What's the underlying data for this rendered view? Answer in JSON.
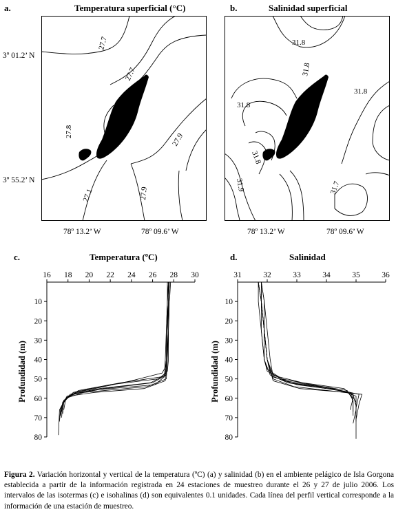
{
  "figure": {
    "panels": [
      {
        "letter": "a.",
        "title": "Temperatura superficial (°C)"
      },
      {
        "letter": "b.",
        "title": "Salinidad superficial"
      },
      {
        "letter": "c.",
        "title": "Temperatura (ºC)"
      },
      {
        "letter": "d.",
        "title": "Salinidad"
      }
    ],
    "maps": {
      "lat_labels": [
        "3º 01.2’ N",
        "3º 55.2’ N"
      ],
      "lon_labels": [
        "78º 13.2’ W",
        "78º 09.6’ W"
      ],
      "temp_isotherm_labels": [
        "27.7",
        "27.7",
        "27.8",
        "27.9",
        "27.9",
        "27.1"
      ],
      "sal_isohaline_labels": [
        "31.8",
        "31.8",
        "31.8",
        "31.8",
        "31.8",
        "31.9",
        "31.7"
      ]
    },
    "profiles": {
      "ylabel": "Profundidad (m)"
    },
    "caption": {
      "label": "Figura 2.",
      "text": " Variación horizontal y vertical de la temperatura (ºC) (a) y salinidad (b) en el ambiente pelágico de Isla Gorgona establecida a partir de la información registrada en 24 estaciones de muestreo durante el 26 y 27 de julio 2006. Los intervalos de las isotermas (c) e isohalinas (d) son equivalentes 0.1 unidades. Cada línea del perfil vertical corresponde a la información de una estación de muestreo."
    }
  },
  "chart_data": [
    {
      "type": "line",
      "title": "Temperatura (ºC)",
      "ylabel": "Profundidad (m)",
      "xlim": [
        16,
        30
      ],
      "ylim": [
        0,
        80
      ],
      "x_ticks": [
        16,
        18,
        20,
        22,
        24,
        26,
        28,
        30
      ],
      "y_ticks": [
        10,
        20,
        30,
        40,
        50,
        60,
        70,
        80
      ],
      "y_inverted": true,
      "x_axis_position": "top",
      "series": [
        {
          "x": [
            27.6,
            27.5,
            27.4,
            27.4,
            27.3,
            26.5,
            22,
            18.5,
            17.6,
            17.5
          ],
          "y": [
            0,
            10,
            25,
            40,
            47,
            50,
            53,
            57,
            62,
            68
          ]
        },
        {
          "x": [
            27.5,
            27.4,
            27.4,
            27.3,
            27.2,
            25.8,
            21,
            18.2,
            17.5,
            17.4
          ],
          "y": [
            0,
            10,
            25,
            40,
            48,
            52,
            55,
            58,
            63,
            70
          ]
        },
        {
          "x": [
            27.7,
            27.6,
            27.5,
            27.5,
            27.4,
            26.8,
            23,
            19,
            17.8,
            17.6
          ],
          "y": [
            0,
            10,
            25,
            40,
            46,
            49,
            52,
            56,
            60,
            66
          ]
        },
        {
          "x": [
            27.4,
            27.4,
            27.3,
            27.2,
            27.1,
            26.2,
            20,
            17.9,
            17.3,
            17.2
          ],
          "y": [
            0,
            10,
            25,
            40,
            49,
            53,
            56,
            59,
            65,
            72
          ]
        },
        {
          "x": [
            27.6,
            27.5,
            27.5,
            27.4,
            27.3,
            25.5,
            19.5,
            17.8,
            17.2,
            17.1
          ],
          "y": [
            0,
            10,
            25,
            40,
            50,
            54,
            57,
            60,
            66,
            79
          ]
        },
        {
          "x": [
            27.5,
            27.5,
            27.4,
            27.3,
            27.2,
            26.9,
            24,
            18.8,
            17.6,
            17.4
          ],
          "y": [
            0,
            10,
            25,
            40,
            44,
            47,
            51,
            57,
            61,
            67
          ]
        },
        {
          "x": [
            27.6,
            27.5,
            27.4,
            27.3,
            27.3,
            26.0,
            21.5,
            18.4,
            17.5,
            17.3
          ],
          "y": [
            0,
            10,
            25,
            40,
            48,
            52,
            55,
            58,
            62,
            69
          ]
        },
        {
          "x": [
            27.5,
            27.4,
            27.3,
            27.3,
            27.2,
            25.2,
            20.5,
            18.0,
            17.4,
            17.2
          ],
          "y": [
            0,
            10,
            25,
            40,
            51,
            55,
            57,
            59,
            64,
            71
          ]
        }
      ]
    },
    {
      "type": "line",
      "title": "Salinidad",
      "ylabel": "Profundidad (m)",
      "xlim": [
        31,
        36
      ],
      "ylim": [
        0,
        80
      ],
      "x_ticks": [
        31,
        32,
        33,
        34,
        35,
        36
      ],
      "y_ticks": [
        10,
        20,
        30,
        40,
        50,
        60,
        70,
        80
      ],
      "y_inverted": true,
      "x_axis_position": "top",
      "series": [
        {
          "x": [
            31.7,
            31.8,
            31.9,
            32.0,
            32.1,
            32.6,
            33.8,
            34.8,
            35.0,
            35.0
          ],
          "y": [
            0,
            10,
            25,
            40,
            47,
            51,
            54,
            57,
            62,
            70
          ]
        },
        {
          "x": [
            31.8,
            31.8,
            31.9,
            32.0,
            32.2,
            32.8,
            34.2,
            34.9,
            35.0,
            35.0
          ],
          "y": [
            0,
            10,
            25,
            40,
            48,
            52,
            55,
            58,
            64,
            72
          ]
        },
        {
          "x": [
            31.7,
            31.7,
            31.8,
            31.9,
            32.0,
            32.5,
            33.5,
            34.7,
            34.9,
            34.9
          ],
          "y": [
            0,
            10,
            25,
            40,
            46,
            50,
            53,
            56,
            61,
            67
          ]
        },
        {
          "x": [
            31.8,
            31.9,
            32.0,
            32.1,
            32.2,
            33.0,
            34.5,
            35.1,
            35.0,
            35.0
          ],
          "y": [
            0,
            10,
            25,
            40,
            49,
            53,
            56,
            58,
            65,
            81
          ]
        },
        {
          "x": [
            31.7,
            31.8,
            31.9,
            31.9,
            32.0,
            32.4,
            33.2,
            34.6,
            34.9,
            34.8
          ],
          "y": [
            0,
            10,
            25,
            40,
            45,
            49,
            52,
            55,
            60,
            66
          ]
        },
        {
          "x": [
            31.8,
            31.8,
            31.9,
            32.0,
            32.2,
            32.9,
            34.6,
            35.2,
            35.1,
            35.0
          ],
          "y": [
            0,
            10,
            25,
            40,
            50,
            54,
            57,
            58,
            63,
            71
          ]
        },
        {
          "x": [
            31.7,
            31.8,
            31.8,
            31.9,
            32.1,
            32.7,
            34.0,
            34.8,
            34.9,
            34.9
          ],
          "y": [
            0,
            10,
            25,
            40,
            48,
            52,
            55,
            57,
            62,
            69
          ]
        },
        {
          "x": [
            31.8,
            31.9,
            31.9,
            32.0,
            32.2,
            33.1,
            34.7,
            35.0,
            35.0,
            34.9
          ],
          "y": [
            0,
            10,
            25,
            40,
            51,
            55,
            57,
            59,
            66,
            73
          ]
        }
      ]
    }
  ]
}
